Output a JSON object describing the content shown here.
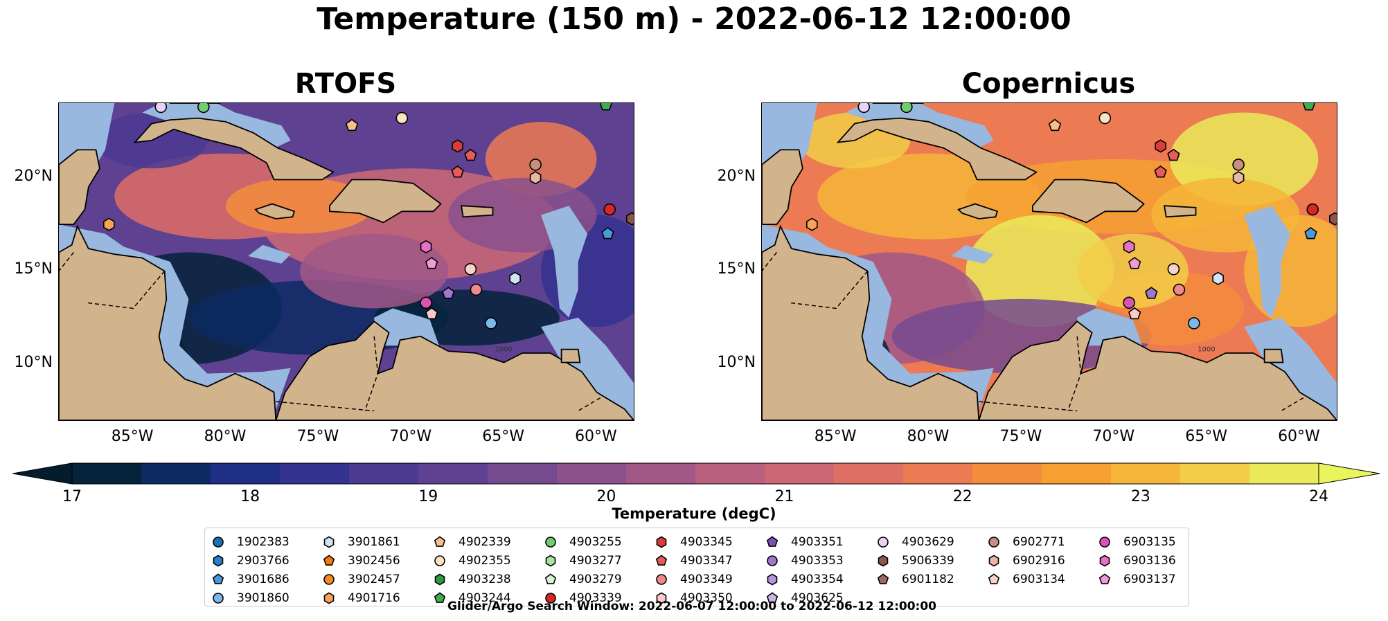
{
  "title": "Temperature (150 m) - 2022-06-12 12:00:00",
  "panels": [
    {
      "title": "RTOFS"
    },
    {
      "title": "Copernicus"
    }
  ],
  "map_data": {
    "lon_range": [
      -89,
      -58
    ],
    "lat_range": [
      7,
      24
    ],
    "lat_ticks": [
      "20°N",
      "15°N",
      "10°N"
    ],
    "lon_ticks": [
      "85°W",
      "80°W",
      "75°W",
      "70°W",
      "65°W",
      "60°W"
    ],
    "land_color": "#d2b48c",
    "shelf_color": "#99b8e0",
    "bathymetry_label": "1000"
  },
  "colorbar": {
    "label": "Temperature (degC)",
    "ticks": [
      "17",
      "18",
      "19",
      "20",
      "21",
      "22",
      "23",
      "24"
    ],
    "colors": [
      "#05233a",
      "#0c2a63",
      "#1f2f85",
      "#34338f",
      "#4b3a92",
      "#5e4191",
      "#754a8f",
      "#8a518c",
      "#a15887",
      "#b9607f",
      "#cc6874",
      "#de6f65",
      "#ec7a52",
      "#f48c3d",
      "#f6a032",
      "#f6b638",
      "#f2cd48",
      "#eaea5a"
    ],
    "under_color": "#041d2e",
    "over_color": "#e8f55c"
  },
  "legend": {
    "columns": [
      [
        {
          "id": "1902383",
          "marker": "circle",
          "color": "#1f6fb4"
        },
        {
          "id": "2903766",
          "marker": "hexagon",
          "color": "#2c7fc9"
        },
        {
          "id": "3901686",
          "marker": "pentagon",
          "color": "#4a97d9"
        },
        {
          "id": "3901860",
          "marker": "circle",
          "color": "#7cb8ea"
        }
      ],
      [
        {
          "id": "3901861",
          "marker": "hexagon",
          "color": "#cfe6f7"
        },
        {
          "id": "3902456",
          "marker": "pentagon",
          "color": "#f07b0b"
        },
        {
          "id": "3902457",
          "marker": "circle",
          "color": "#f58a22"
        },
        {
          "id": "4901716",
          "marker": "hexagon",
          "color": "#f8a25a"
        }
      ],
      [
        {
          "id": "4902339",
          "marker": "pentagon",
          "color": "#f9bf88"
        },
        {
          "id": "4902355",
          "marker": "circle",
          "color": "#fde2c3"
        },
        {
          "id": "4903238",
          "marker": "hexagon",
          "color": "#2f9a3c"
        },
        {
          "id": "4903244",
          "marker": "pentagon",
          "color": "#3fae4c"
        }
      ],
      [
        {
          "id": "4903255",
          "marker": "circle",
          "color": "#6fcf6e"
        },
        {
          "id": "4903277",
          "marker": "hexagon",
          "color": "#a9e4a0"
        },
        {
          "id": "4903279",
          "marker": "pentagon",
          "color": "#d7f3cf"
        },
        {
          "id": "4903339",
          "marker": "circle",
          "color": "#d62728"
        }
      ],
      [
        {
          "id": "4903345",
          "marker": "hexagon",
          "color": "#dc3b3b"
        },
        {
          "id": "4903347",
          "marker": "pentagon",
          "color": "#e75b5b"
        },
        {
          "id": "4903349",
          "marker": "circle",
          "color": "#f08a8a"
        },
        {
          "id": "4903350",
          "marker": "hexagon",
          "color": "#fbc9c9"
        }
      ],
      [
        {
          "id": "4903351",
          "marker": "pentagon",
          "color": "#7e52b3"
        },
        {
          "id": "4903353",
          "marker": "circle",
          "color": "#9f77cf"
        },
        {
          "id": "4903354",
          "marker": "hexagon",
          "color": "#b794dc"
        },
        {
          "id": "4903625",
          "marker": "pentagon",
          "color": "#cdb4e9"
        }
      ],
      [
        {
          "id": "4903629",
          "marker": "circle",
          "color": "#e6d3f5"
        },
        {
          "id": "5906339",
          "marker": "hexagon",
          "color": "#8c564b"
        },
        {
          "id": "6901182",
          "marker": "pentagon",
          "color": "#9b6a5d"
        }
      ],
      [
        {
          "id": "6902771",
          "marker": "circle",
          "color": "#c78f7e"
        },
        {
          "id": "6902916",
          "marker": "hexagon",
          "color": "#e9b7a5"
        },
        {
          "id": "6903134",
          "marker": "pentagon",
          "color": "#f6d3c6"
        }
      ],
      [
        {
          "id": "6903135",
          "marker": "circle",
          "color": "#d955b5"
        },
        {
          "id": "6903136",
          "marker": "hexagon",
          "color": "#e672c5"
        },
        {
          "id": "6903137",
          "marker": "pentagon",
          "color": "#f29ad9"
        }
      ]
    ]
  },
  "markers": [
    {
      "id": "m1",
      "lon": -83.5,
      "lat": 23.8,
      "marker": "circle",
      "color": "#e6d3f5"
    },
    {
      "id": "m2",
      "lon": -81.2,
      "lat": 23.8,
      "marker": "circle",
      "color": "#6fcf6e"
    },
    {
      "id": "m3",
      "lon": -73.2,
      "lat": 22.8,
      "marker": "pentagon",
      "color": "#f9bf88"
    },
    {
      "id": "m4",
      "lon": -70.5,
      "lat": 23.2,
      "marker": "circle",
      "color": "#fde2c3"
    },
    {
      "id": "m5",
      "lon": -67.5,
      "lat": 21.7,
      "marker": "hexagon",
      "color": "#dc3b3b"
    },
    {
      "id": "m6",
      "lon": -66.8,
      "lat": 21.2,
      "marker": "pentagon",
      "color": "#e75b5b"
    },
    {
      "id": "m7",
      "lon": -67.5,
      "lat": 20.3,
      "marker": "pentagon",
      "color": "#e75b5b"
    },
    {
      "id": "m8",
      "lon": -63.3,
      "lat": 20.7,
      "marker": "circle",
      "color": "#c78f7e"
    },
    {
      "id": "m9",
      "lon": -63.3,
      "lat": 20.0,
      "marker": "hexagon",
      "color": "#e9b7a5"
    },
    {
      "id": "m10",
      "lon": -59.5,
      "lat": 23.9,
      "marker": "pentagon",
      "color": "#3fae4c"
    },
    {
      "id": "m11",
      "lon": -86.3,
      "lat": 17.5,
      "marker": "hexagon",
      "color": "#f8a25a"
    },
    {
      "id": "m12",
      "lon": -59.3,
      "lat": 18.3,
      "marker": "circle",
      "color": "#d62728"
    },
    {
      "id": "m13",
      "lon": -58.1,
      "lat": 17.8,
      "marker": "hexagon",
      "color": "#8c564b"
    },
    {
      "id": "m14",
      "lon": -59.4,
      "lat": 17.0,
      "marker": "pentagon",
      "color": "#4a97d9"
    },
    {
      "id": "m15",
      "lon": -69.2,
      "lat": 16.3,
      "marker": "hexagon",
      "color": "#e672c5"
    },
    {
      "id": "m16",
      "lon": -68.9,
      "lat": 15.4,
      "marker": "pentagon",
      "color": "#f29ad9"
    },
    {
      "id": "m17",
      "lon": -66.8,
      "lat": 15.1,
      "marker": "circle",
      "color": "#f6d3c6"
    },
    {
      "id": "m18",
      "lon": -64.4,
      "lat": 14.6,
      "marker": "hexagon",
      "color": "#cfe6f7"
    },
    {
      "id": "m19",
      "lon": -66.5,
      "lat": 14.0,
      "marker": "circle",
      "color": "#f08a8a"
    },
    {
      "id": "m20",
      "lon": -68.0,
      "lat": 13.8,
      "marker": "pentagon",
      "color": "#9f77cf"
    },
    {
      "id": "m21",
      "lon": -69.2,
      "lat": 13.3,
      "marker": "circle",
      "color": "#d955b5"
    },
    {
      "id": "m22",
      "lon": -68.9,
      "lat": 12.7,
      "marker": "pentagon",
      "color": "#fbc9c9"
    },
    {
      "id": "m23",
      "lon": -65.7,
      "lat": 12.2,
      "marker": "circle",
      "color": "#7cb8ea"
    }
  ],
  "footnote": "Glider/Argo Search Window: 2022-06-07 12:00:00 to 2022-06-12 12:00:00"
}
